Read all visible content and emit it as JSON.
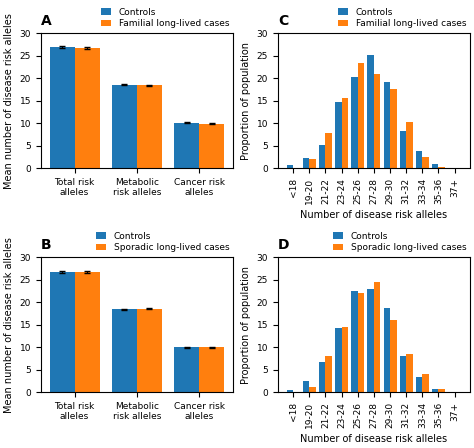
{
  "chart_data": [
    {
      "type": "bar",
      "title": "A",
      "categories": [
        "Total risk alleles",
        "Metabolic risk alleles",
        "Cancer risk alleles"
      ],
      "series": [
        {
          "name": "Controls",
          "values": [
            27.0,
            18.6,
            10.1
          ],
          "errors": [
            0.15,
            0.1,
            0.1
          ]
        },
        {
          "name": "Familial long-lived cases",
          "values": [
            26.8,
            18.5,
            9.9
          ],
          "errors": [
            0.15,
            0.1,
            0.1
          ]
        }
      ],
      "ylabel": "Mean number of disease risk alleles",
      "ylim": [
        0,
        30
      ],
      "yticks": [
        0,
        5,
        10,
        15,
        20,
        25,
        30
      ]
    },
    {
      "type": "bar",
      "title": "B",
      "categories": [
        "Total risk alleles",
        "Metabolic risk alleles",
        "Cancer risk alleles"
      ],
      "series": [
        {
          "name": "Controls",
          "values": [
            26.8,
            18.5,
            10.0
          ],
          "errors": [
            0.15,
            0.1,
            0.1
          ]
        },
        {
          "name": "Sporadic long-lived cases",
          "values": [
            26.8,
            18.6,
            10.0
          ],
          "errors": [
            0.15,
            0.1,
            0.1
          ]
        }
      ],
      "ylabel": "Mean number of disease risk alleles",
      "ylim": [
        0,
        30
      ],
      "yticks": [
        0,
        5,
        10,
        15,
        20,
        25,
        30
      ]
    },
    {
      "type": "bar",
      "title": "C",
      "categories": [
        "<18",
        "19-20",
        "21-22",
        "23-24",
        "25-26",
        "27-28",
        "29-30",
        "31-32",
        "33-34",
        "35-36",
        "37+"
      ],
      "series": [
        {
          "name": "Controls",
          "values": [
            0.8,
            2.4,
            5.1,
            14.7,
            20.2,
            25.2,
            19.2,
            8.2,
            3.8,
            1.0,
            0.1
          ]
        },
        {
          "name": "Familial long-lived cases",
          "values": [
            0.0,
            2.0,
            7.8,
            15.6,
            23.5,
            20.9,
            17.7,
            10.2,
            2.5,
            0.4,
            0.0
          ]
        }
      ],
      "ylabel": "Proportion of population",
      "xlabel": "Number of disease risk alleles",
      "ylim": [
        0,
        30
      ],
      "yticks": [
        0,
        5,
        10,
        15,
        20,
        25,
        30
      ]
    },
    {
      "type": "bar",
      "title": "D",
      "categories": [
        "<18",
        "19-20",
        "21-22",
        "23-24",
        "25-26",
        "27-28",
        "29-30",
        "31-32",
        "33-34",
        "35-36",
        "37+"
      ],
      "series": [
        {
          "name": "Controls",
          "values": [
            0.6,
            2.5,
            6.7,
            14.2,
            22.5,
            23.0,
            18.8,
            8.1,
            3.3,
            0.7,
            0.1
          ]
        },
        {
          "name": "Sporadic long-lived cases",
          "values": [
            0.0,
            1.2,
            8.0,
            14.6,
            22.1,
            24.6,
            16.0,
            8.6,
            4.0,
            0.7,
            0.0
          ]
        }
      ],
      "ylabel": "Proportion of population",
      "xlabel": "Number of disease risk alleles",
      "ylim": [
        0,
        30
      ],
      "yticks": [
        0,
        5,
        10,
        15,
        20,
        25,
        30
      ]
    }
  ]
}
